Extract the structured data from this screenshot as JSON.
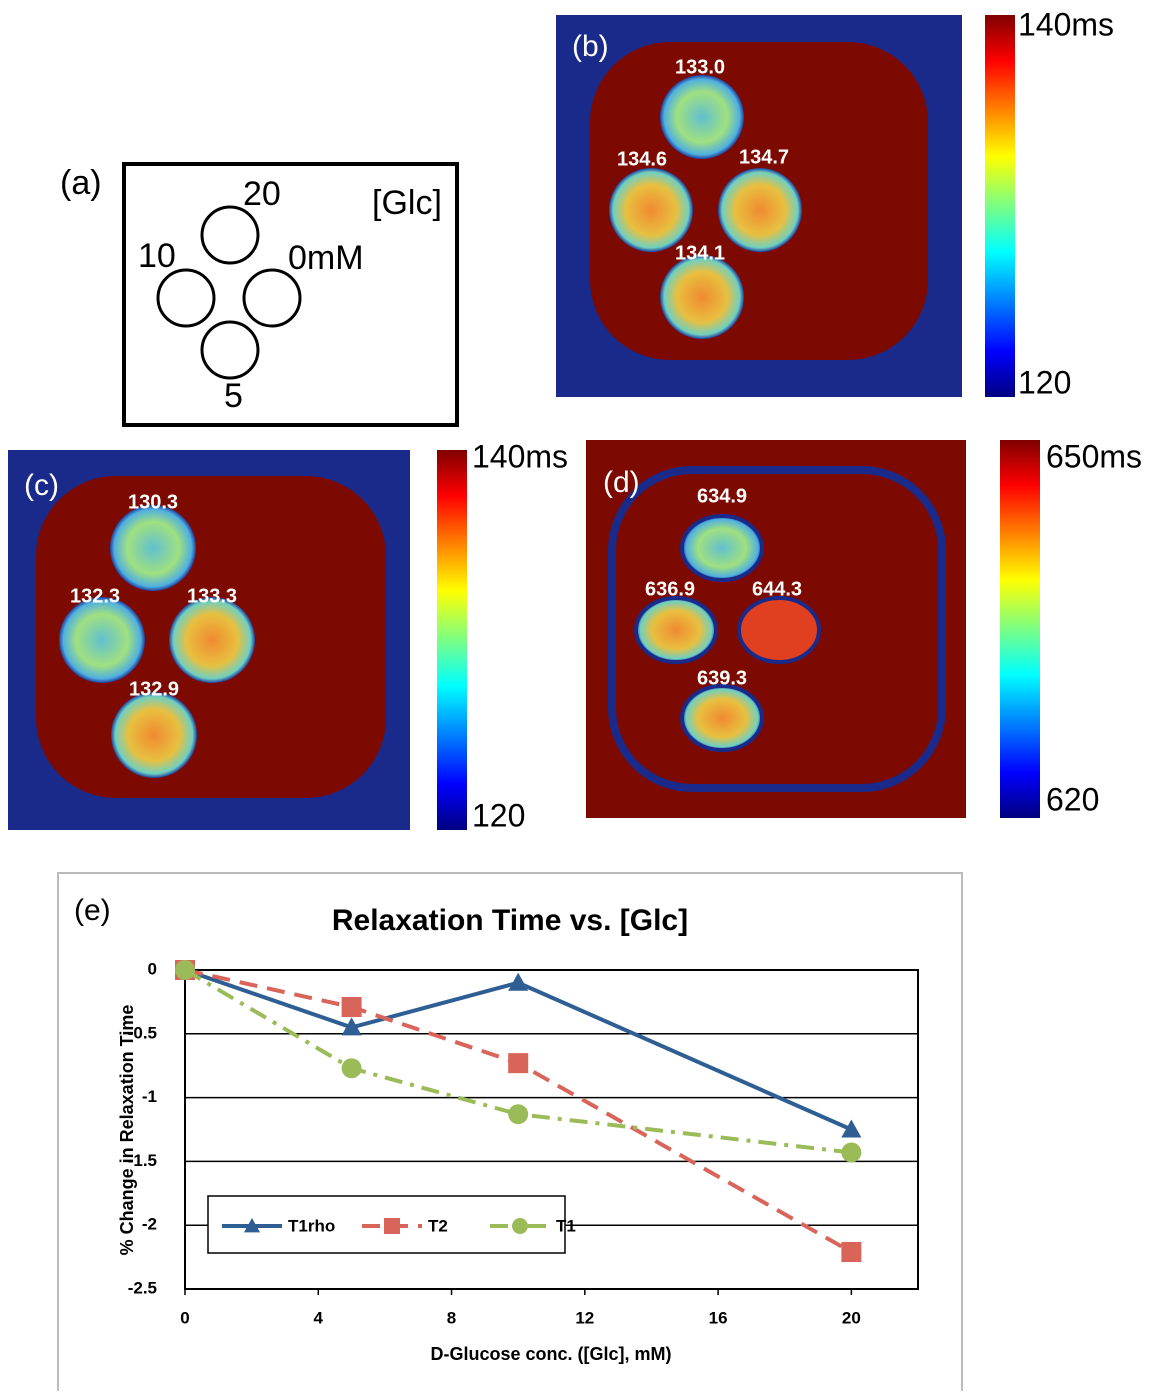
{
  "panels": {
    "a": {
      "label": "(a)",
      "concentrations": [
        "20",
        "10",
        "0mM",
        "5"
      ],
      "unit_label": "[Glc]"
    },
    "b": {
      "label": "(b)",
      "values": [
        "133.0",
        "134.6",
        "134.7",
        "134.1"
      ],
      "colorbar": {
        "max_label": "140ms",
        "min_label": "120"
      }
    },
    "c": {
      "label": "(c)",
      "values": [
        "130.3",
        "132.3",
        "133.3",
        "132.9"
      ],
      "colorbar": {
        "max_label": "140ms",
        "min_label": "120"
      }
    },
    "d": {
      "label": "(d)",
      "values": [
        "634.9",
        "636.9",
        "644.3",
        "639.3"
      ],
      "colorbar": {
        "max_label": "650ms",
        "min_label": "620"
      }
    }
  },
  "chart_data": {
    "type": "line",
    "panel_label": "(e)",
    "title": "Relaxation Time vs. [Glc]",
    "x_label": "D-Glucose conc. ([Glc], mM)",
    "y_label": "% Change in Relaxation Time",
    "x": [
      0,
      5,
      10,
      20
    ],
    "series": [
      {
        "name": "T1rho",
        "color": "#2e5e94",
        "marker": "triangle",
        "dash": "solid",
        "values": [
          0,
          -0.45,
          -0.1,
          -1.25
        ]
      },
      {
        "name": "T2",
        "color": "#d9645a",
        "marker": "square",
        "dash": "dashed",
        "values": [
          0,
          -0.29,
          -0.73,
          -2.21
        ]
      },
      {
        "name": "T1",
        "color": "#9bbb59",
        "marker": "circle",
        "dash": "dashdot",
        "values": [
          0,
          -0.77,
          -1.13,
          -1.43
        ]
      }
    ],
    "xlim": [
      0,
      22
    ],
    "xticks": [
      0,
      4,
      8,
      12,
      16,
      20
    ],
    "ylim": [
      -2.5,
      0
    ],
    "yticks": [
      0,
      -0.5,
      -1,
      -1.5,
      -2,
      -2.5
    ],
    "grid": true,
    "legend": "lower-left"
  }
}
